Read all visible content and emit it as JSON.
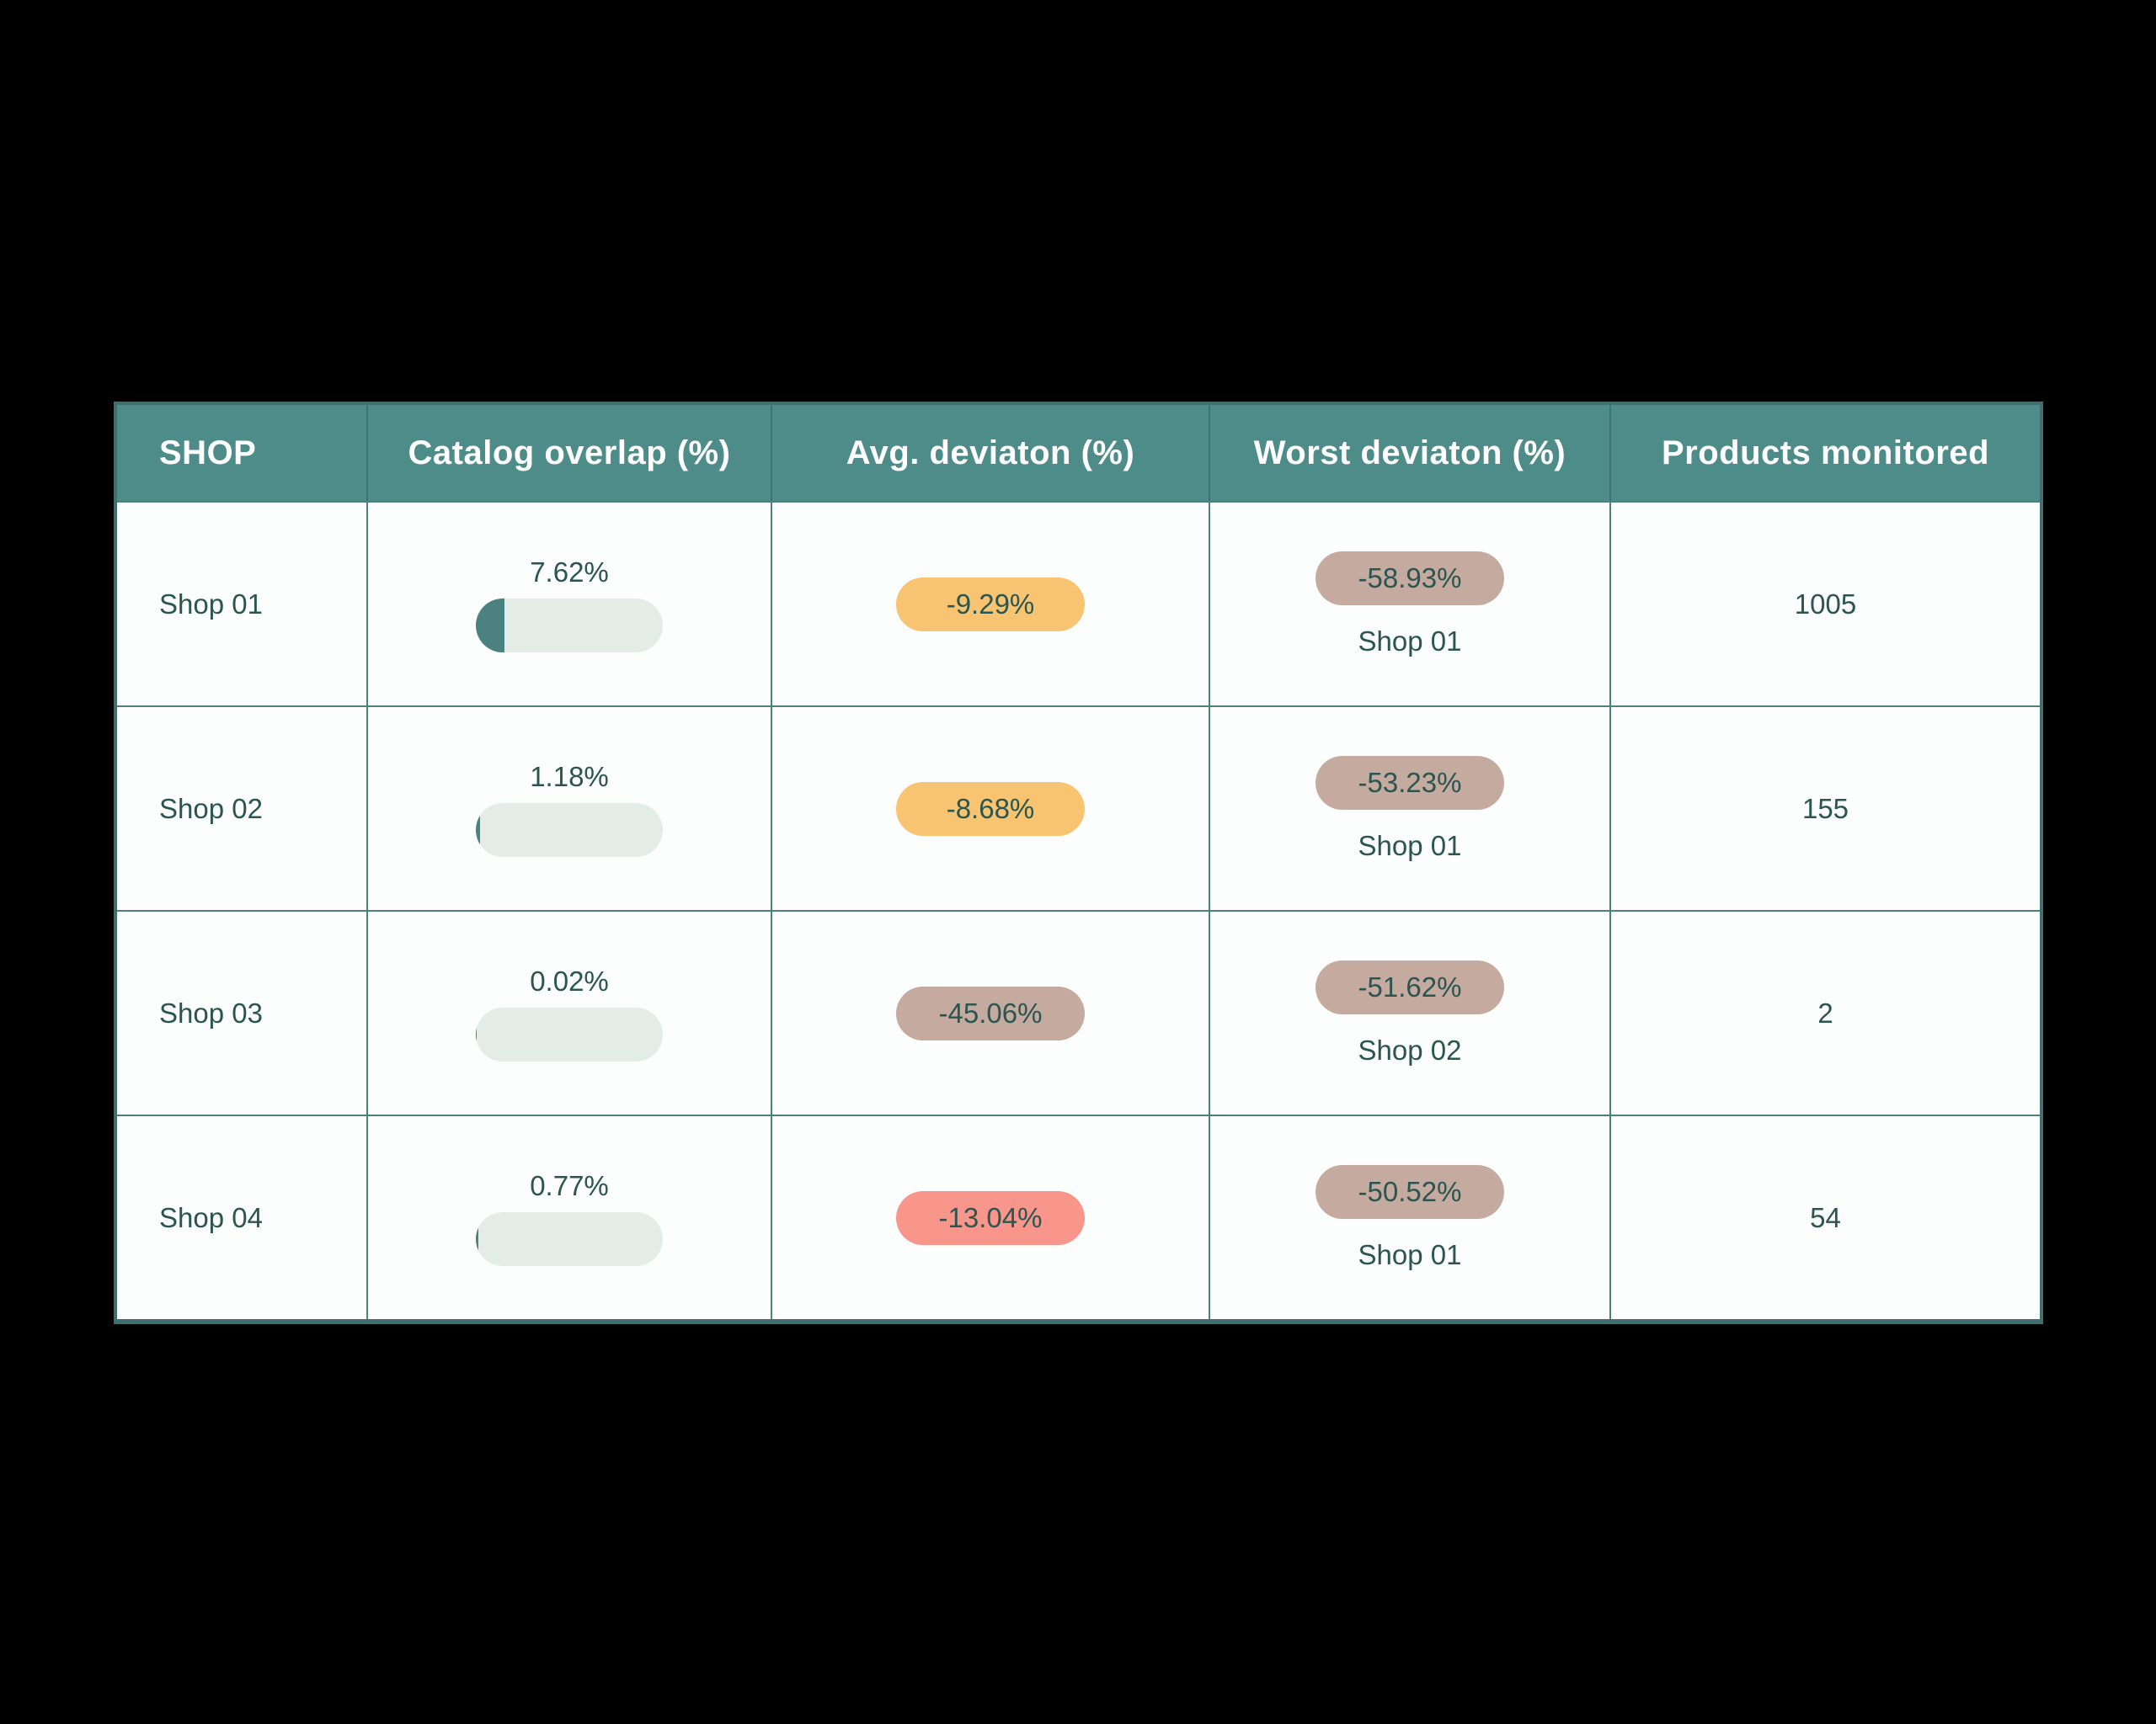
{
  "page": {
    "background": "#000000"
  },
  "table": {
    "columns": [
      {
        "key": "shop",
        "label": "SHOP"
      },
      {
        "key": "catalog-overlap",
        "label": "Catalog overlap (%)"
      },
      {
        "key": "avg-deviation",
        "label": "Avg. deviaton (%)"
      },
      {
        "key": "worst-deviation",
        "label": "Worst deviaton (%)"
      },
      {
        "key": "products-monitored",
        "label": "Products monitored"
      }
    ],
    "rows": [
      {
        "shop": "Shop 01",
        "catalog_overlap_label": "7.62%",
        "catalog_overlap_value": 7.62,
        "avg_deviation_label": "-9.29%",
        "avg_badge_color": "#f9c471",
        "worst_deviation_label": "-58.93%",
        "worst_badge_color": "#c5aaa0",
        "worst_shop": "Shop 01",
        "products_monitored": "1005"
      },
      {
        "shop": "Shop 02",
        "catalog_overlap_label": "1.18%",
        "catalog_overlap_value": 1.18,
        "avg_deviation_label": "-8.68%",
        "avg_badge_color": "#f9c471",
        "worst_deviation_label": "-53.23%",
        "worst_badge_color": "#c5aaa0",
        "worst_shop": "Shop 01",
        "products_monitored": "155"
      },
      {
        "shop": "Shop 03",
        "catalog_overlap_label": "0.02%",
        "catalog_overlap_value": 0.02,
        "avg_deviation_label": "-45.06%",
        "avg_badge_color": "#c5aaa0",
        "worst_deviation_label": "-51.62%",
        "worst_badge_color": "#c5aaa0",
        "worst_shop": "Shop 02",
        "products_monitored": "2"
      },
      {
        "shop": "Shop 04",
        "catalog_overlap_label": "0.77%",
        "catalog_overlap_value": 0.77,
        "avg_deviation_label": "-13.04%",
        "avg_badge_color": "#f9968b",
        "worst_deviation_label": "-50.52%",
        "worst_badge_color": "#c5aaa0",
        "worst_shop": "Shop 01",
        "products_monitored": "54"
      }
    ],
    "colors": {
      "header_bg": "#4e8c89",
      "header_text": "#ffffff",
      "cell_bg": "#fcfdfd",
      "text": "#2a5550",
      "grid_line": "#4e7f7c",
      "outer_border": "#3f706d",
      "bar_track": "#e4ece8",
      "bar_fill": "#4b817e",
      "badge_yellow": "#f9c471",
      "badge_taupe": "#c5aaa0",
      "badge_salmon": "#f9968b",
      "page_background": "#000000"
    }
  },
  "chart_data": {
    "type": "table",
    "columns": [
      "SHOP",
      "Catalog overlap (%)",
      "Avg. deviaton (%)",
      "Worst deviaton (%)",
      "Products monitored"
    ],
    "rows": [
      {
        "shop": "Shop 01",
        "catalog_overlap_pct": 7.62,
        "avg_deviation_pct": -9.29,
        "worst_deviation_pct": -58.93,
        "worst_deviation_shop": "Shop 01",
        "products_monitored": 1005
      },
      {
        "shop": "Shop 02",
        "catalog_overlap_pct": 1.18,
        "avg_deviation_pct": -8.68,
        "worst_deviation_pct": -53.23,
        "worst_deviation_shop": "Shop 01",
        "products_monitored": 155
      },
      {
        "shop": "Shop 03",
        "catalog_overlap_pct": 0.02,
        "avg_deviation_pct": -45.06,
        "worst_deviation_pct": -51.62,
        "worst_deviation_shop": "Shop 02",
        "products_monitored": 2
      },
      {
        "shop": "Shop 04",
        "catalog_overlap_pct": 0.77,
        "avg_deviation_pct": -13.04,
        "worst_deviation_pct": -50.52,
        "worst_deviation_shop": "Shop 01",
        "products_monitored": 54
      }
    ],
    "legend_position": "none",
    "notes": "Price monitoring comparison table on black background; overlap column shows a mini progress bar; deviation columns show colored pill badges (yellow = mild, salmon = moderate, taupe = severe)."
  }
}
